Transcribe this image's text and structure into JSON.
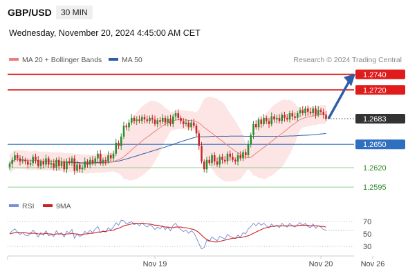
{
  "header": {
    "symbol": "GBP/USD",
    "timeframe": "30 MIN",
    "datetime": "Wednesday, November 20, 2024 4:45:00 AM CET"
  },
  "legend": {
    "ma20_label": "MA 20 + Bollinger Bands",
    "ma50_label": "MA 50",
    "credit": "Research © 2024 Trading Central",
    "rsi_label": "RSI",
    "rsi_ma_label": "9MA"
  },
  "colors": {
    "bull": "#2e8b2e",
    "bear": "#c62828",
    "ma20": "#e88080",
    "ma50": "#2f5ea8",
    "band": "#fde2e2",
    "resistance": "#e01b1b",
    "support_blue": "#2f6fbf",
    "support_green": "#8fcf8f",
    "arrow": "#2f5ea8",
    "rsi": "#7a8fd6",
    "rsi_ma": "#cc2222"
  },
  "chart_data": {
    "type": "candlestick",
    "timeframe": "30 MIN",
    "levels": [
      {
        "value": 1.274,
        "label": "1.2740",
        "kind": "resistance"
      },
      {
        "value": 1.272,
        "label": "1.2720",
        "kind": "resistance"
      },
      {
        "value": 1.2683,
        "label": "1.2683",
        "kind": "current"
      },
      {
        "value": 1.265,
        "label": "1.2650",
        "kind": "pivot"
      },
      {
        "value": 1.262,
        "label": "1.2620",
        "kind": "support"
      },
      {
        "value": 1.2595,
        "label": "1.2595",
        "kind": "support"
      }
    ],
    "x_labels": [
      {
        "label": "Nov 19",
        "bar": 56
      },
      {
        "label": "Nov 20",
        "bar": 120
      },
      {
        "label": "Nov 26",
        "bar": 140
      }
    ],
    "price_closes": [
      1.2625,
      1.263,
      1.2636,
      1.2632,
      1.2628,
      1.263,
      1.2628,
      1.2624,
      1.2626,
      1.2634,
      1.263,
      1.2622,
      1.2628,
      1.2624,
      1.2632,
      1.2624,
      1.2626,
      1.262,
      1.263,
      1.2622,
      1.2628,
      1.2618,
      1.2628,
      1.2626,
      1.2632,
      1.2616,
      1.2624,
      1.2618,
      1.262,
      1.2628,
      1.2624,
      1.263,
      1.2626,
      1.2632,
      1.2638,
      1.2626,
      1.263,
      1.2628,
      1.2636,
      1.2632,
      1.2638,
      1.2652,
      1.2648,
      1.266,
      1.2674,
      1.2672,
      1.2678,
      1.2684,
      1.268,
      1.2682,
      1.268,
      1.2685,
      1.2682,
      1.268,
      1.2684,
      1.2682,
      1.2676,
      1.2681,
      1.2679,
      1.2684,
      1.2678,
      1.2683,
      1.2676,
      1.2686,
      1.269,
      1.2684,
      1.268,
      1.2676,
      1.2678,
      1.2672,
      1.2678,
      1.2674,
      1.2664,
      1.2648,
      1.2628,
      1.2618,
      1.263,
      1.2626,
      1.2636,
      1.2628,
      1.2624,
      1.2634,
      1.263,
      1.2628,
      1.2638,
      1.2634,
      1.263,
      1.2628,
      1.2636,
      1.2632,
      1.264,
      1.2636,
      1.265,
      1.2662,
      1.2676,
      1.2672,
      1.2682,
      1.2676,
      1.2684,
      1.268,
      1.2676,
      1.2686,
      1.2682,
      1.2684,
      1.268,
      1.2688,
      1.2684,
      1.2682,
      1.269,
      1.2686,
      1.2684,
      1.269,
      1.2694,
      1.269,
      1.2696,
      1.2692,
      1.269,
      1.2696,
      1.2688,
      1.2694,
      1.2692,
      1.2688,
      1.2683
    ],
    "rsi_axis": {
      "ticks": [
        30,
        50,
        70
      ],
      "dotted": [
        30,
        70
      ]
    },
    "rsi_values": [
      51,
      55,
      58,
      53,
      49,
      52,
      48,
      47,
      50,
      56,
      51,
      45,
      52,
      48,
      55,
      47,
      49,
      46,
      55,
      49,
      52,
      45,
      54,
      52,
      57,
      43,
      50,
      46,
      48,
      54,
      51,
      56,
      52,
      58,
      62,
      52,
      55,
      53,
      60,
      56,
      61,
      68,
      64,
      72,
      71,
      66,
      68,
      70,
      65,
      67,
      63,
      68,
      64,
      61,
      65,
      62,
      57,
      61,
      58,
      63,
      57,
      61,
      55,
      64,
      67,
      61,
      57,
      54,
      56,
      51,
      55,
      52,
      44,
      34,
      26,
      28,
      40,
      38,
      45,
      42,
      39,
      46,
      44,
      42,
      49,
      46,
      44,
      43,
      48,
      45,
      52,
      50,
      58,
      62,
      67,
      63,
      68,
      64,
      67,
      63,
      60,
      66,
      62,
      64,
      60,
      67,
      63,
      61,
      67,
      63,
      61,
      65,
      68,
      64,
      67,
      62,
      60,
      66,
      59,
      63,
      61,
      57,
      56
    ],
    "rsi_ma_values": [
      50,
      51,
      52,
      53,
      52,
      52,
      52,
      51,
      51,
      51,
      51,
      50,
      50,
      50,
      51,
      50,
      50,
      49,
      50,
      50,
      50,
      49,
      50,
      50,
      51,
      50,
      50,
      49,
      49,
      50,
      50,
      51,
      51,
      52,
      53,
      53,
      54,
      54,
      55,
      55,
      56,
      58,
      59,
      61,
      63,
      64,
      65,
      66,
      67,
      67,
      67,
      67,
      67,
      66,
      66,
      65,
      64,
      64,
      63,
      62,
      61,
      61,
      60,
      60,
      61,
      61,
      61,
      60,
      60,
      59,
      58,
      57,
      55,
      52,
      48,
      44,
      41,
      39,
      38,
      37,
      37,
      38,
      39,
      40,
      41,
      42,
      43,
      43,
      44,
      44,
      45,
      46,
      47,
      49,
      51,
      53,
      55,
      57,
      59,
      60,
      61,
      62,
      62,
      63,
      63,
      63,
      63,
      63,
      63,
      63,
      63,
      63,
      64,
      64,
      64,
      64,
      63,
      63,
      63,
      63,
      62,
      62,
      61
    ]
  }
}
